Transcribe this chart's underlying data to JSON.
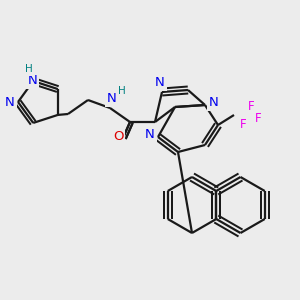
{
  "background_color": "#ececec",
  "bond_color": "#1a1a1a",
  "bond_width": 1.6,
  "atom_colors": {
    "N": "#0000ee",
    "O": "#dd0000",
    "F": "#ee00ee",
    "H_label": "#008080"
  },
  "font_size": 8.5
}
